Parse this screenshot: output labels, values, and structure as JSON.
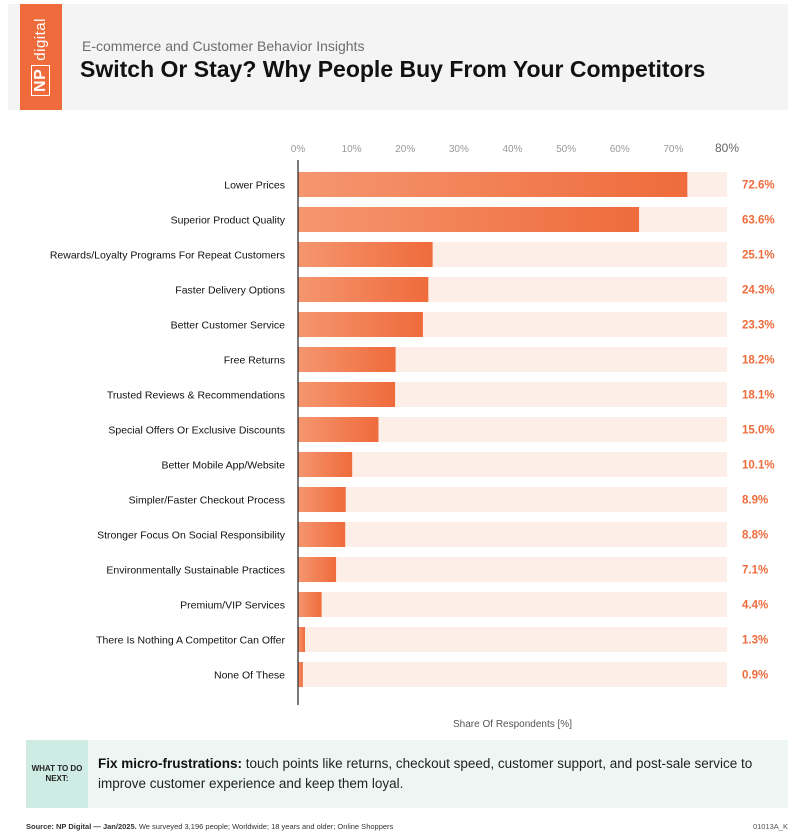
{
  "header": {
    "logo_text": "NP",
    "logo_sub": "digital",
    "subtitle": "E-commerce and Customer Behavior Insights",
    "title": "Switch Or Stay? Why People Buy From Your Competitors"
  },
  "colors": {
    "accent": "#ef6b3b",
    "track": "#fdeee7",
    "callout_bg": "#eef6f3",
    "callout_tag": "#cfece4"
  },
  "chart_data": {
    "type": "bar",
    "orientation": "horizontal",
    "categories": [
      "Lower Prices",
      "Superior Product Quality",
      "Rewards/Loyalty Programs For Repeat Customers",
      "Faster Delivery Options",
      "Better Customer Service",
      "Free Returns",
      "Trusted Reviews & Recommendations",
      "Special Offers Or Exclusive Discounts",
      "Better Mobile App/Website",
      "Simpler/Faster Checkout Process",
      "Stronger Focus On Social Responsibility",
      "Environmentally Sustainable Practices",
      "Premium/VIP Services",
      "There Is Nothing A Competitor Can Offer",
      "None Of These"
    ],
    "values": [
      72.6,
      63.6,
      25.1,
      24.3,
      23.3,
      18.2,
      18.1,
      15.0,
      10.1,
      8.9,
      8.8,
      7.1,
      4.4,
      1.3,
      0.9
    ],
    "value_labels": [
      "72.6%",
      "63.6%",
      "25.1%",
      "24.3%",
      "23.3%",
      "18.2%",
      "18.1%",
      "15.0%",
      "10.1%",
      "8.9%",
      "8.8%",
      "7.1%",
      "4.4%",
      "1.3%",
      "0.9%"
    ],
    "xticks": [
      "0%",
      "10%",
      "20%",
      "30%",
      "40%",
      "50%",
      "60%",
      "70%",
      "80%"
    ],
    "xlim": [
      0,
      80
    ],
    "xlabel": "Share Of Respondents [%]",
    "grid": false
  },
  "callout": {
    "tag": "WHAT TO DO NEXT:",
    "lead": "Fix micro-frustrations:",
    "text": " touch points like returns, checkout speed, customer support, and post-sale service to improve customer experience and keep them loyal."
  },
  "footer": {
    "source_label": "Source: NP Digital — Jan/2025.",
    "source_text": " We surveyed 3,196 people; Worldwide; 18 years and older; Online Shoppers",
    "code": "01013A_K"
  }
}
